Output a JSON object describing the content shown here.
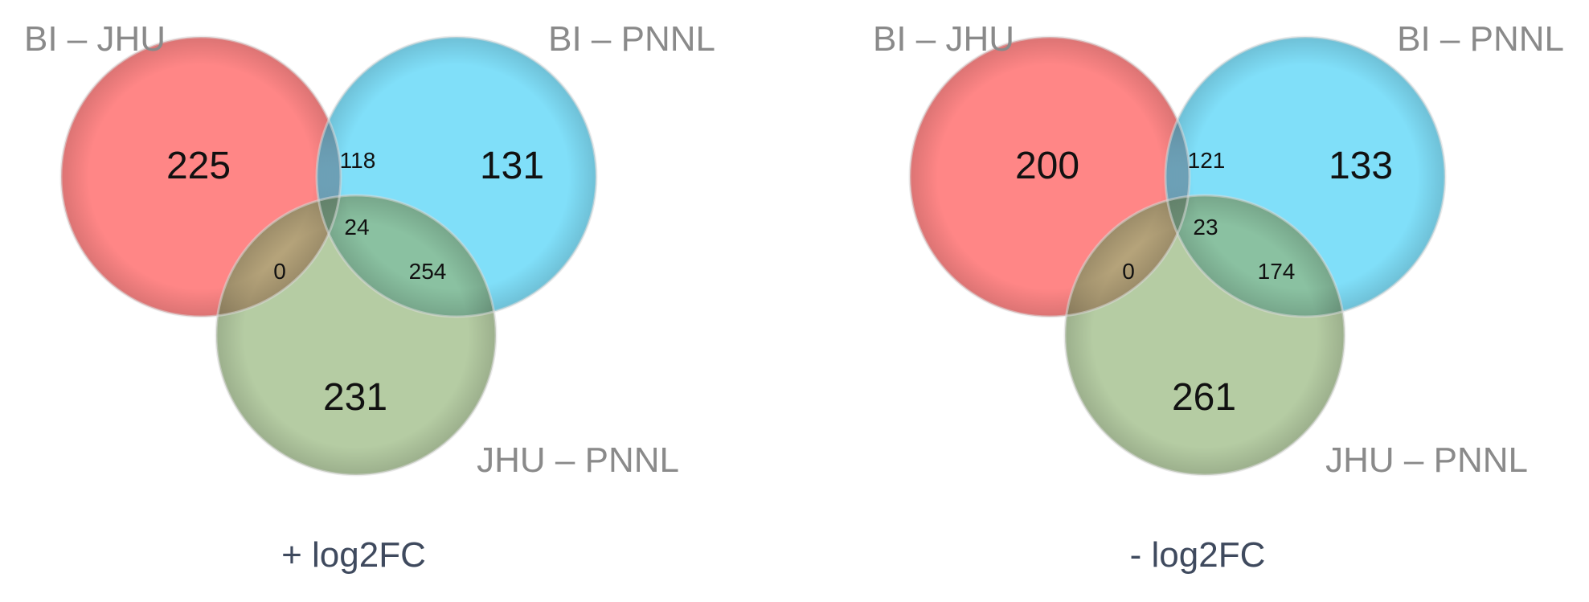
{
  "colors": {
    "set_a": "#ff6b6b",
    "set_b": "#4fd3f7",
    "set_c": "#8fb274",
    "set_label": "#8a8a8a",
    "caption": "#3f4a5e"
  },
  "venns": [
    {
      "caption": "+ log2FC",
      "set_labels": {
        "a": "BI – JHU",
        "b": "BI – PNNL",
        "c": "JHU – PNNL"
      },
      "regions": {
        "a_only": "225",
        "b_only": "131",
        "c_only": "231",
        "ab": "118",
        "ac": "0",
        "bc": "254",
        "abc": "24"
      }
    },
    {
      "caption": "- log2FC",
      "set_labels": {
        "a": "BI – JHU",
        "b": "BI – PNNL",
        "c": "JHU – PNNL"
      },
      "regions": {
        "a_only": "200",
        "b_only": "133",
        "c_only": "261",
        "ab": "121",
        "ac": "0",
        "bc": "174",
        "abc": "23"
      }
    }
  ]
}
